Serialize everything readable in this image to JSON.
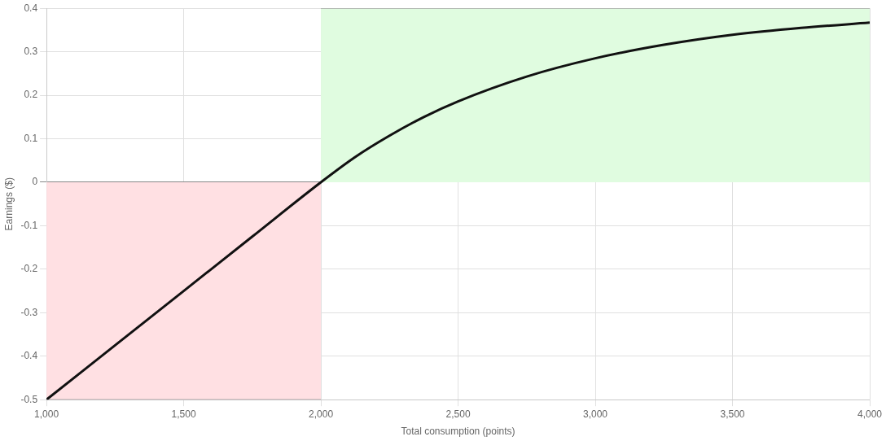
{
  "chart_data": {
    "type": "line",
    "xlabel": "Total consumption (points)",
    "ylabel": "Earnings ($)",
    "xlim": [
      1000,
      4000
    ],
    "ylim": [
      -0.5,
      0.4
    ],
    "xticks": [
      {
        "value": 1000,
        "label": "1,000"
      },
      {
        "value": 1500,
        "label": "1,500"
      },
      {
        "value": 2000,
        "label": "2,000"
      },
      {
        "value": 2500,
        "label": "2,500"
      },
      {
        "value": 3000,
        "label": "3,000"
      },
      {
        "value": 3500,
        "label": "3,500"
      },
      {
        "value": 4000,
        "label": "4,000"
      }
    ],
    "yticks": [
      -0.5,
      -0.4,
      -0.3,
      -0.2,
      -0.1,
      0,
      0.1,
      0.2,
      0.3,
      0.4
    ],
    "grid": true,
    "legend": false,
    "marker": "none",
    "line_style": "solid",
    "series": [
      {
        "type": "area",
        "color": "#ffe0e3",
        "x": [
          1000,
          2000
        ],
        "values": [
          -0.5,
          -0.5
        ]
      },
      {
        "type": "area",
        "color": "#e0fce0",
        "x": [
          2000,
          4000
        ],
        "values": [
          0.4,
          0.4
        ]
      },
      {
        "type": "line",
        "color": "#111111",
        "x": [
          1000,
          1250,
          1500,
          1750,
          2000,
          2125,
          2250,
          2375,
          2500,
          2750,
          3000,
          3250,
          3500,
          3750,
          4000
        ],
        "values": [
          -0.5,
          -0.375,
          -0.25,
          -0.125,
          0,
          0.058,
          0.107,
          0.15,
          0.186,
          0.243,
          0.285,
          0.316,
          0.339,
          0.355,
          0.367
        ]
      }
    ]
  }
}
